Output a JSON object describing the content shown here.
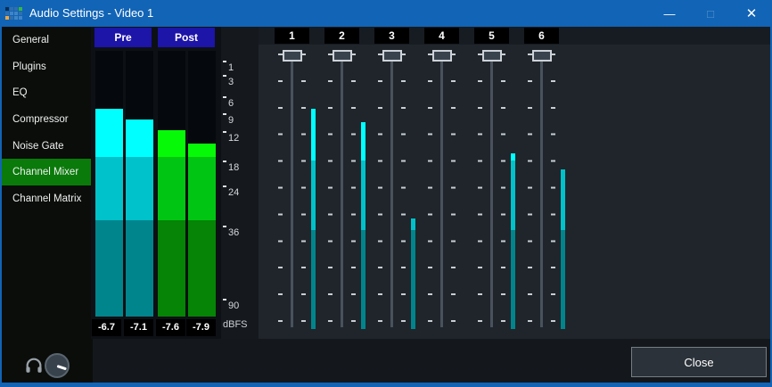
{
  "window": {
    "title": "Audio Settings - Video 1",
    "controls": {
      "minimize": "—",
      "maximize": "□",
      "close": "✕"
    }
  },
  "sidebar": {
    "items": [
      {
        "label": "General",
        "selected": false
      },
      {
        "label": "Plugins",
        "selected": false
      },
      {
        "label": "EQ",
        "selected": false
      },
      {
        "label": "Compressor",
        "selected": false
      },
      {
        "label": "Noise Gate",
        "selected": false
      },
      {
        "label": "Channel Mixer",
        "selected": true
      },
      {
        "label": "Channel Matrix",
        "selected": false
      }
    ]
  },
  "meters_panel": {
    "groups": [
      {
        "label": "Pre",
        "scheme": "cyan",
        "channels": [
          {
            "value_db": "-6.7",
            "level_top_pct": 21.8
          },
          {
            "value_db": "-7.1",
            "level_top_pct": 25.8
          }
        ]
      },
      {
        "label": "Post",
        "scheme": "green",
        "channels": [
          {
            "value_db": "-7.6",
            "level_top_pct": 29.9
          },
          {
            "value_db": "-7.9",
            "level_top_pct": 34.9
          }
        ]
      }
    ],
    "scale_ticks": [
      "1",
      "3",
      "6",
      "9",
      "12",
      "18",
      "24",
      "36",
      "90"
    ],
    "unit_label": "dBFS"
  },
  "channel_mixer": {
    "channels": [
      {
        "number": "1",
        "meter_top_pct": 19.5
      },
      {
        "number": "2",
        "meter_top_pct": 24.4
      },
      {
        "number": "3",
        "meter_top_pct": 59.6
      },
      {
        "number": "4",
        "meter_top_pct": 100
      },
      {
        "number": "5",
        "meter_top_pct": 35.8
      },
      {
        "number": "6",
        "meter_top_pct": 41.7
      }
    ]
  },
  "footer": {
    "close_button_label": "Close"
  },
  "colors": {
    "titlebar": "#1164b6",
    "main_bg": "#1f252b",
    "sidebar_bg": "#0a0d0a",
    "selected_green": "#0a7a0a",
    "label_navy": "#1d14a8",
    "panel_black": "#0d1014",
    "meter_bg": "#05080c",
    "footer_bg": "#14181d",
    "cyan_hi": "#00ffff",
    "cyan_mid": "#00c2ca",
    "cyan_lo": "#00858d",
    "green_hi": "#06f906",
    "green_mid": "#00c613",
    "green_lo": "#058405",
    "tick": "#c7ced4",
    "track": "#49525c",
    "handle_fill": "#39434d",
    "handle_border": "#ccd2d8"
  }
}
